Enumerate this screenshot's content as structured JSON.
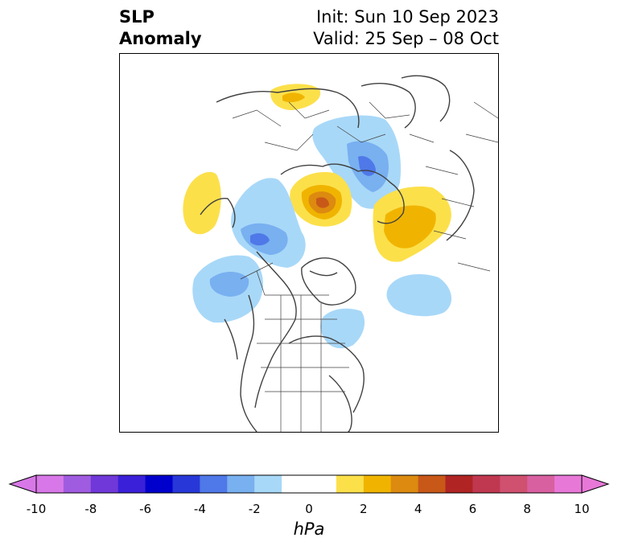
{
  "title": {
    "left_line1": "SLP",
    "left_line2": "Anomaly",
    "right_line1": "Init: Sun 10 Sep 2023",
    "right_line2": "Valid: 25 Sep – 08 Oct"
  },
  "map": {
    "projection": "polar stereographic (North America / Arctic)",
    "features": [
      "coastlines",
      "country borders",
      "US state borders",
      "Canadian province borders"
    ],
    "anomalies": [
      {
        "name": "positive-anomaly-kara-sea",
        "sign": "positive",
        "peak_hPa": 4
      },
      {
        "name": "positive-anomaly-east-siberia",
        "sign": "positive",
        "peak_hPa": 2
      },
      {
        "name": "positive-anomaly-scandinavia",
        "sign": "positive",
        "peak_hPa": 1
      },
      {
        "name": "positive-anomaly-north-pacific",
        "sign": "positive",
        "peak_hPa": 1
      },
      {
        "name": "negative-anomaly-siberia",
        "sign": "negative",
        "peak_hPa": -4
      },
      {
        "name": "negative-anomaly-alaska-beaufort",
        "sign": "negative",
        "peak_hPa": -4
      },
      {
        "name": "negative-anomaly-gulf-of-alaska",
        "sign": "negative",
        "peak_hPa": -3
      },
      {
        "name": "negative-anomaly-north-atlantic",
        "sign": "negative",
        "peak_hPa": -2
      },
      {
        "name": "negative-anomaly-labrador",
        "sign": "negative",
        "peak_hPa": -2
      }
    ]
  },
  "colorbar": {
    "unit": "hPa",
    "min": -10,
    "max": 10,
    "step": 1,
    "ticks": [
      "-10",
      "-8",
      "-6",
      "-4",
      "-2",
      "0",
      "2",
      "4",
      "6",
      "8",
      "10"
    ],
    "colors": [
      "#d878e8",
      "#a05ce0",
      "#7038d8",
      "#3a20d8",
      "#0000cc",
      "#2838d8",
      "#4f78e8",
      "#78b0f0",
      "#a8d8f8",
      "#ffffff",
      "#ffffff",
      "#fce04a",
      "#f0b400",
      "#dc8a10",
      "#c85818",
      "#b02424",
      "#c03850",
      "#d05070",
      "#d860a0",
      "#e878d8"
    ],
    "extend_min_color": "#d878e8",
    "extend_max_color": "#e878d8"
  }
}
